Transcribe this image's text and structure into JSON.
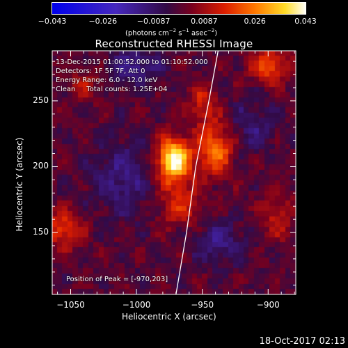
{
  "chart_data": {
    "type": "heatmap",
    "title": "Reconstructed RHESSI Image",
    "xlabel": "Heliocentric X (arcsec)",
    "ylabel": "Heliocentric Y (arcsec)",
    "xlim": [
      -1064,
      -879
    ],
    "ylim": [
      103,
      288
    ],
    "x_ticks": [
      "−1050",
      "−1000",
      "−950",
      "−900"
    ],
    "x_tick_values": [
      -1050,
      -1000,
      -950,
      -900
    ],
    "y_ticks": [
      "150",
      "200",
      "250"
    ],
    "y_tick_values": [
      150,
      200,
      250
    ],
    "colorbar": {
      "min": -0.043,
      "max": 0.043,
      "tick_labels": [
        "−0.043",
        "−0.026",
        "−0.0087",
        "0.0087",
        "0.026",
        "0.043"
      ],
      "units_prefix": "(photons cm",
      "units_e1": "−2",
      "units_mid1": " s",
      "units_e2": "−1",
      "units_mid2": " asec",
      "units_e3": "−2",
      "units_suffix": ")"
    },
    "sources": [
      {
        "x": -970,
        "y": 203,
        "amplitude": 0.043,
        "sx": 9,
        "sy": 12
      },
      {
        "x": -938,
        "y": 212,
        "amplitude": 0.025,
        "sx": 10,
        "sy": 14
      },
      {
        "x": -948,
        "y": 248,
        "amplitude": 0.014,
        "sx": 8,
        "sy": 10
      },
      {
        "x": -965,
        "y": 168,
        "amplitude": 0.014,
        "sx": 12,
        "sy": 12
      },
      {
        "x": -1055,
        "y": 150,
        "amplitude": 0.018,
        "sx": 10,
        "sy": 10
      },
      {
        "x": -896,
        "y": 276,
        "amplitude": 0.02,
        "sx": 10,
        "sy": 9
      },
      {
        "x": -890,
        "y": 160,
        "amplitude": 0.012,
        "sx": 8,
        "sy": 12
      },
      {
        "x": -1040,
        "y": 262,
        "amplitude": 0.01,
        "sx": 10,
        "sy": 8
      },
      {
        "x": -1000,
        "y": 275,
        "amplitude": -0.014,
        "sx": 14,
        "sy": 10
      },
      {
        "x": -1010,
        "y": 190,
        "amplitude": -0.012,
        "sx": 16,
        "sy": 20
      },
      {
        "x": -935,
        "y": 140,
        "amplitude": -0.012,
        "sx": 14,
        "sy": 12
      },
      {
        "x": -910,
        "y": 230,
        "amplitude": -0.01,
        "sx": 12,
        "sy": 14
      }
    ],
    "limb_curve": [
      [
        -970,
        103
      ],
      [
        -962,
        150
      ],
      [
        -955,
        200
      ],
      [
        -945,
        250
      ],
      [
        -938,
        288
      ]
    ],
    "peak_position": [
      -970,
      203
    ]
  },
  "annotations": {
    "time_range": "13-Dec-2015 01:00:52.000 to 01:10:52.000",
    "detectors": "Detectors: 1F 5F 7F, Att 0",
    "energy_range": "Energy Range: 6.0 - 12.0 keV",
    "clean_counts": "Clean     Total counts: 1.25E+04",
    "peak_position": "Position of Peak = [-970,203]"
  },
  "footer": {
    "date": "18-Oct-2017 02:13"
  }
}
